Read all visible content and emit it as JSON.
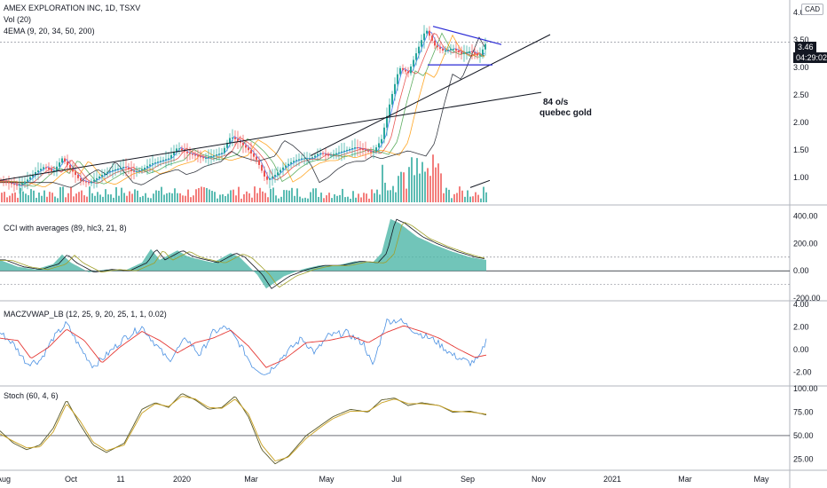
{
  "header": {
    "symbol_title": "AMEX EXPLORATION INC, 1D, TSXV",
    "vol_label": "Vol (20)",
    "ema_label": "4EMA (9, 20, 34, 50, 200)",
    "currency": "CAD"
  },
  "price_tags": {
    "last": "3.46",
    "countdown": "04:29:02"
  },
  "annotations": {
    "line1": "84 o/s",
    "line2": "quebec gold"
  },
  "panes": {
    "cci_label": "CCI with averages (89, hlc3, 21, 8)",
    "macd_label": "MACZVWAP_LB (12, 25, 9, 20, 25, 1, 1, 0.02)",
    "stoch_label": "Stoch (60, 4, 6)"
  },
  "colors": {
    "up": "#26a69a",
    "down": "#ef5350",
    "cci_fill": "#4db6a8",
    "blue": "#2962ff",
    "red": "#e53935",
    "olive": "#a0a02a",
    "black": "#131722"
  },
  "chart_data": [
    {
      "type": "candlestick",
      "title": "AMEX EXPLORATION INC, 1D, TSXV",
      "ylim": [
        0.6,
        4.1
      ],
      "y_ticks": [
        "4.00",
        "3.50",
        "3.00",
        "2.50",
        "2.00",
        "1.50",
        "1.00"
      ],
      "x_ticks": [
        "Aug",
        "Oct",
        "11",
        "2020",
        "Mar",
        "May",
        "Jul",
        "Sep",
        "Nov",
        "2021",
        "Mar",
        "May"
      ],
      "close_series": [
        [
          0,
          0.95
        ],
        [
          10,
          0.9
        ],
        [
          20,
          0.85
        ],
        [
          30,
          0.95
        ],
        [
          40,
          1.1
        ],
        [
          50,
          1.2
        ],
        [
          60,
          1.1
        ],
        [
          70,
          1.35
        ],
        [
          80,
          1.15
        ],
        [
          90,
          0.95
        ],
        [
          100,
          0.9
        ],
        [
          110,
          1.0
        ],
        [
          120,
          1.1
        ],
        [
          130,
          1.15
        ],
        [
          140,
          1.2
        ],
        [
          150,
          1.1
        ],
        [
          160,
          1.15
        ],
        [
          170,
          1.25
        ],
        [
          180,
          1.3
        ],
        [
          190,
          1.35
        ],
        [
          200,
          1.55
        ],
        [
          210,
          1.45
        ],
        [
          220,
          1.4
        ],
        [
          230,
          1.35
        ],
        [
          240,
          1.4
        ],
        [
          250,
          1.45
        ],
        [
          260,
          1.75
        ],
        [
          270,
          1.65
        ],
        [
          280,
          1.5
        ],
        [
          290,
          1.3
        ],
        [
          300,
          0.95
        ],
        [
          310,
          1.05
        ],
        [
          320,
          1.2
        ],
        [
          330,
          1.3
        ],
        [
          340,
          1.35
        ],
        [
          350,
          1.35
        ],
        [
          360,
          1.45
        ],
        [
          370,
          1.4
        ],
        [
          380,
          1.45
        ],
        [
          390,
          1.5
        ],
        [
          400,
          1.55
        ],
        [
          410,
          1.5
        ],
        [
          420,
          1.45
        ],
        [
          430,
          1.7
        ],
        [
          440,
          2.4
        ],
        [
          450,
          3.0
        ],
        [
          460,
          2.9
        ],
        [
          470,
          3.3
        ],
        [
          480,
          3.7
        ],
        [
          490,
          3.4
        ],
        [
          500,
          3.3
        ],
        [
          510,
          3.35
        ],
        [
          520,
          3.25
        ],
        [
          530,
          3.3
        ],
        [
          540,
          3.2
        ],
        [
          548,
          3.46
        ]
      ],
      "volume_ylim": [
        0,
        60
      ],
      "annotations": [
        "84 o/s",
        "quebec gold"
      ]
    },
    {
      "type": "area",
      "title": "CCI with averages (89, hlc3, 21, 8)",
      "ylim": [
        -200,
        450
      ],
      "y_ticks": [
        "400.00",
        "200.00",
        "0.00",
        "-200.00"
      ],
      "values": [
        [
          0,
          80
        ],
        [
          20,
          30
        ],
        [
          40,
          10
        ],
        [
          60,
          50
        ],
        [
          70,
          120
        ],
        [
          80,
          60
        ],
        [
          100,
          -10
        ],
        [
          120,
          10
        ],
        [
          140,
          0
        ],
        [
          160,
          60
        ],
        [
          170,
          160
        ],
        [
          180,
          80
        ],
        [
          200,
          150
        ],
        [
          210,
          110
        ],
        [
          220,
          90
        ],
        [
          240,
          60
        ],
        [
          260,
          130
        ],
        [
          270,
          100
        ],
        [
          290,
          -30
        ],
        [
          300,
          -130
        ],
        [
          320,
          -40
        ],
        [
          340,
          10
        ],
        [
          360,
          40
        ],
        [
          380,
          40
        ],
        [
          400,
          70
        ],
        [
          420,
          60
        ],
        [
          430,
          130
        ],
        [
          440,
          380
        ],
        [
          450,
          350
        ],
        [
          470,
          250
        ],
        [
          490,
          190
        ],
        [
          510,
          140
        ],
        [
          530,
          100
        ],
        [
          548,
          80
        ]
      ]
    },
    {
      "type": "line",
      "title": "MACZVWAP_LB (12, 25, 9, 20, 25, 1, 1, 0.02)",
      "ylim": [
        -3,
        4
      ],
      "y_ticks": [
        "4.00",
        "2.00",
        "0.00",
        "-2.00"
      ],
      "series": [
        {
          "values": [
            [
              0,
              1.5
            ],
            [
              15,
              0.5
            ],
            [
              30,
              -1.2
            ],
            [
              45,
              -1.0
            ],
            [
              60,
              1.0
            ],
            [
              75,
              2.3
            ],
            [
              90,
              0.2
            ],
            [
              105,
              -1.5
            ],
            [
              120,
              -0.5
            ],
            [
              140,
              1.0
            ],
            [
              160,
              2.0
            ],
            [
              175,
              0.5
            ],
            [
              190,
              -1.0
            ],
            [
              210,
              1.0
            ],
            [
              225,
              -0.5
            ],
            [
              240,
              1.5
            ],
            [
              255,
              2.0
            ],
            [
              270,
              0.5
            ],
            [
              285,
              -1.5
            ],
            [
              300,
              -2.2
            ],
            [
              320,
              -0.5
            ],
            [
              340,
              1.0
            ],
            [
              355,
              -0.3
            ],
            [
              370,
              1.2
            ],
            [
              390,
              1.5
            ],
            [
              410,
              0.5
            ],
            [
              420,
              -1.5
            ],
            [
              435,
              2.5
            ],
            [
              450,
              2.6
            ],
            [
              470,
              1.5
            ],
            [
              490,
              0.8
            ],
            [
              510,
              -0.5
            ],
            [
              530,
              -1.2
            ],
            [
              540,
              -0.8
            ],
            [
              548,
              0.8
            ]
          ]
        },
        {
          "values": [
            [
              0,
              1.0
            ],
            [
              20,
              0.8
            ],
            [
              35,
              -0.8
            ],
            [
              55,
              0.2
            ],
            [
              75,
              1.8
            ],
            [
              95,
              0.8
            ],
            [
              115,
              -1.2
            ],
            [
              135,
              0.2
            ],
            [
              160,
              1.6
            ],
            [
              180,
              0.8
            ],
            [
              200,
              -0.3
            ],
            [
              220,
              0.6
            ],
            [
              240,
              1.0
            ],
            [
              260,
              1.7
            ],
            [
              280,
              0.3
            ],
            [
              300,
              -1.6
            ],
            [
              320,
              -0.9
            ],
            [
              345,
              0.6
            ],
            [
              370,
              0.8
            ],
            [
              395,
              1.2
            ],
            [
              415,
              0.6
            ],
            [
              435,
              1.5
            ],
            [
              455,
              2.1
            ],
            [
              475,
              1.6
            ],
            [
              495,
              1.0
            ],
            [
              515,
              0.1
            ],
            [
              535,
              -0.7
            ],
            [
              548,
              -0.5
            ]
          ]
        }
      ]
    },
    {
      "type": "line",
      "title": "Stoch (60, 4, 6)",
      "ylim": [
        15,
        100
      ],
      "y_ticks": [
        "100.00",
        "75.00",
        "50.00",
        "25.00"
      ],
      "series": [
        {
          "values": [
            [
              0,
              55
            ],
            [
              15,
              42
            ],
            [
              30,
              35
            ],
            [
              45,
              40
            ],
            [
              60,
              58
            ],
            [
              75,
              88
            ],
            [
              90,
              62
            ],
            [
              105,
              40
            ],
            [
              120,
              32
            ],
            [
              140,
              42
            ],
            [
              160,
              78
            ],
            [
              175,
              85
            ],
            [
              190,
              80
            ],
            [
              205,
              95
            ],
            [
              220,
              88
            ],
            [
              235,
              78
            ],
            [
              250,
              80
            ],
            [
              265,
              92
            ],
            [
              280,
              70
            ],
            [
              295,
              35
            ],
            [
              310,
              20
            ],
            [
              325,
              28
            ],
            [
              345,
              50
            ],
            [
              360,
              60
            ],
            [
              375,
              70
            ],
            [
              395,
              78
            ],
            [
              415,
              75
            ],
            [
              430,
              88
            ],
            [
              445,
              90
            ],
            [
              460,
              82
            ],
            [
              475,
              85
            ],
            [
              495,
              82
            ],
            [
              510,
              75
            ],
            [
              530,
              76
            ],
            [
              548,
              72
            ]
          ]
        },
        {
          "values": [
            [
              0,
              52
            ],
            [
              15,
              44
            ],
            [
              30,
              37
            ],
            [
              45,
              38
            ],
            [
              60,
              54
            ],
            [
              75,
              84
            ],
            [
              90,
              66
            ],
            [
              105,
              43
            ],
            [
              120,
              34
            ],
            [
              140,
              40
            ],
            [
              160,
              74
            ],
            [
              175,
              84
            ],
            [
              190,
              81
            ],
            [
              205,
              92
            ],
            [
              220,
              89
            ],
            [
              235,
              80
            ],
            [
              250,
              79
            ],
            [
              265,
              89
            ],
            [
              280,
              73
            ],
            [
              295,
              40
            ],
            [
              310,
              23
            ],
            [
              325,
              27
            ],
            [
              345,
              47
            ],
            [
              360,
              58
            ],
            [
              375,
              68
            ],
            [
              395,
              76
            ],
            [
              415,
              76
            ],
            [
              430,
              85
            ],
            [
              445,
              89
            ],
            [
              460,
              84
            ],
            [
              475,
              84
            ],
            [
              495,
              82
            ],
            [
              510,
              76
            ],
            [
              530,
              75
            ],
            [
              548,
              73
            ]
          ]
        }
      ]
    }
  ]
}
